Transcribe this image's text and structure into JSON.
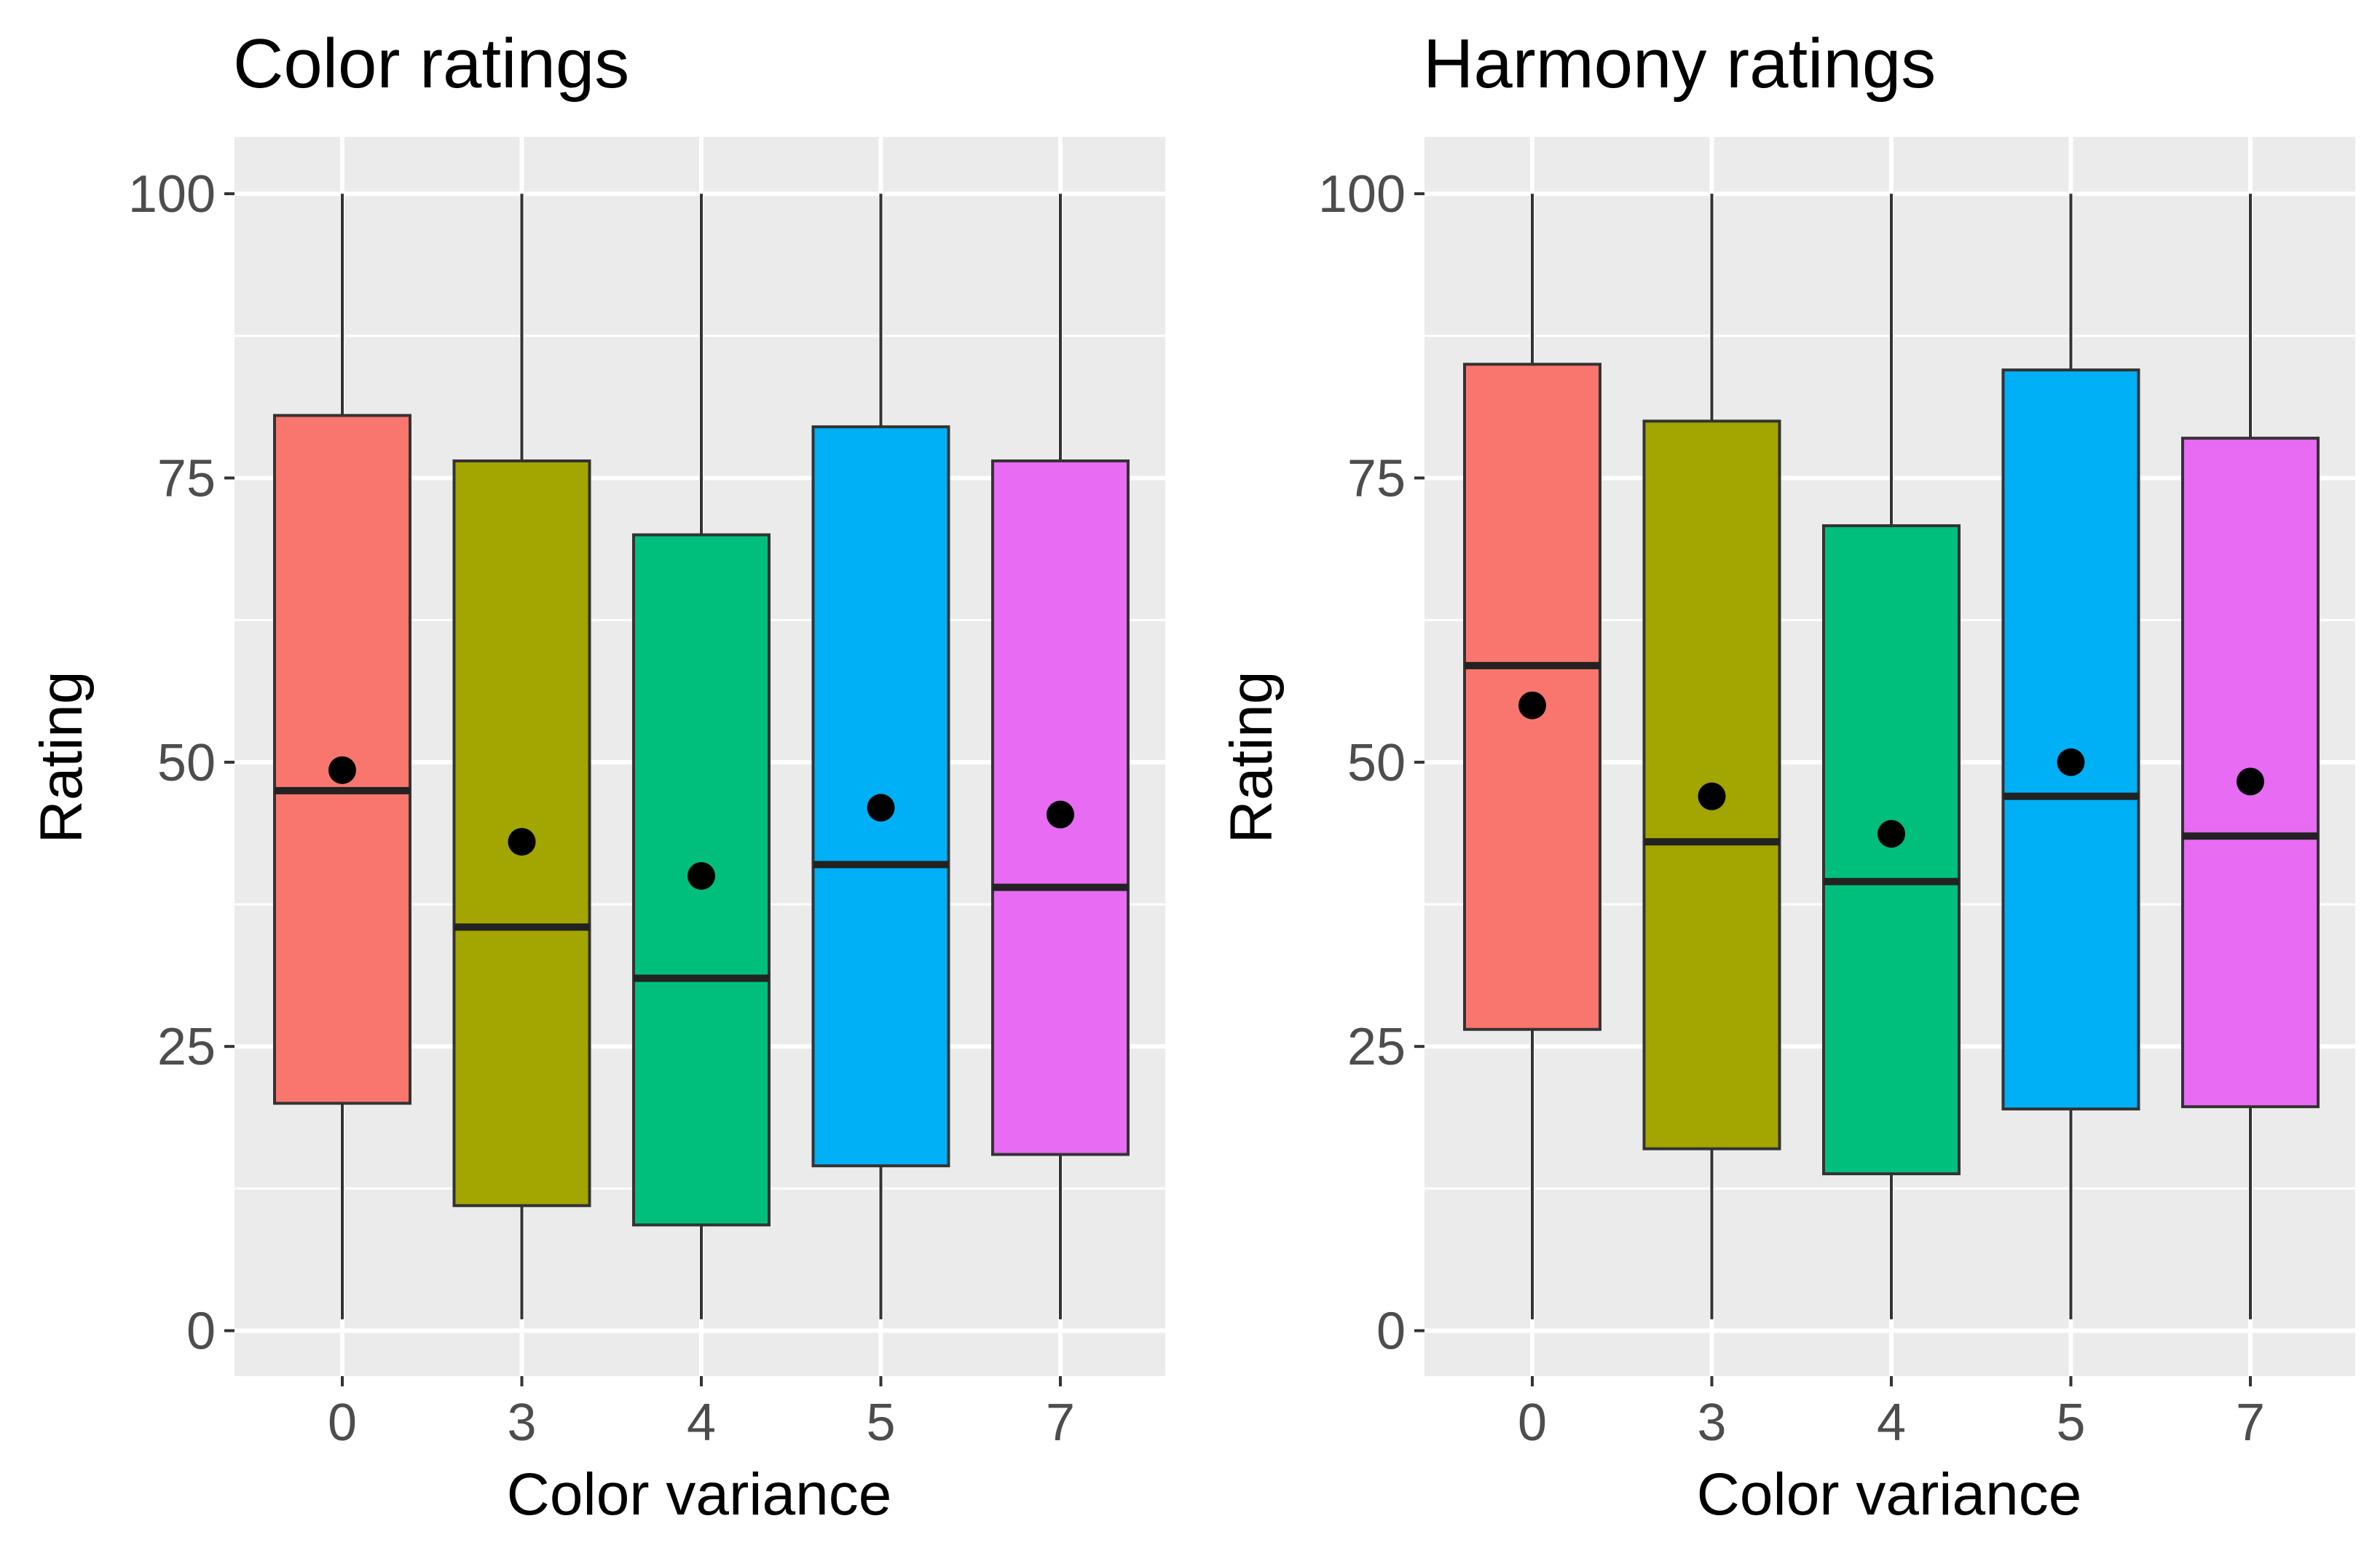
{
  "chart_data": [
    {
      "type": "boxplot",
      "title": "Color ratings",
      "xlabel": "Color variance",
      "ylabel": "Rating",
      "ylim": [
        -4,
        105
      ],
      "yticks": [
        0,
        25,
        50,
        75,
        100
      ],
      "ytick_labels": [
        "0",
        "25",
        "50",
        "75",
        "100"
      ],
      "categories": [
        "0",
        "3",
        "4",
        "5",
        "7"
      ],
      "grid": true,
      "legend": "none",
      "series": [
        {
          "name": "0",
          "color": "#F8766D",
          "min": 1,
          "q1": 20,
          "median": 47.5,
          "q3": 80.5,
          "max": 100,
          "mean": 49.3
        },
        {
          "name": "3",
          "color": "#A3A500",
          "min": 1,
          "q1": 11,
          "median": 35.5,
          "q3": 76.5,
          "max": 100,
          "mean": 43
        },
        {
          "name": "4",
          "color": "#00BF7D",
          "min": 1,
          "q1": 9.3,
          "median": 31,
          "q3": 70,
          "max": 100,
          "mean": 40
        },
        {
          "name": "5",
          "color": "#00B0F6",
          "min": 1,
          "q1": 14.5,
          "median": 41,
          "q3": 79.5,
          "max": 100,
          "mean": 46
        },
        {
          "name": "7",
          "color": "#E76BF3",
          "min": 1,
          "q1": 15.5,
          "median": 39,
          "q3": 76.5,
          "max": 100,
          "mean": 45.4
        }
      ]
    },
    {
      "type": "boxplot",
      "title": "Harmony ratings",
      "xlabel": "Color variance",
      "ylabel": "Rating",
      "ylim": [
        -4,
        105
      ],
      "yticks": [
        0,
        25,
        50,
        75,
        100
      ],
      "ytick_labels": [
        "0",
        "25",
        "50",
        "75",
        "100"
      ],
      "categories": [
        "0",
        "3",
        "4",
        "5",
        "7"
      ],
      "grid": true,
      "legend": "none",
      "series": [
        {
          "name": "0",
          "color": "#F8766D",
          "min": 1,
          "q1": 26.5,
          "median": 58.5,
          "q3": 85,
          "max": 100,
          "mean": 55
        },
        {
          "name": "3",
          "color": "#A3A500",
          "min": 1,
          "q1": 16,
          "median": 43,
          "q3": 80,
          "max": 100,
          "mean": 47
        },
        {
          "name": "4",
          "color": "#00BF7D",
          "min": 1,
          "q1": 13.8,
          "median": 39.5,
          "q3": 70.8,
          "max": 100,
          "mean": 43.7
        },
        {
          "name": "5",
          "color": "#00B0F6",
          "min": 1,
          "q1": 19.5,
          "median": 47,
          "q3": 84.5,
          "max": 100,
          "mean": 50
        },
        {
          "name": "7",
          "color": "#E76BF3",
          "min": 1,
          "q1": 19.7,
          "median": 43.5,
          "q3": 78.5,
          "max": 100,
          "mean": 48.3
        }
      ]
    }
  ]
}
